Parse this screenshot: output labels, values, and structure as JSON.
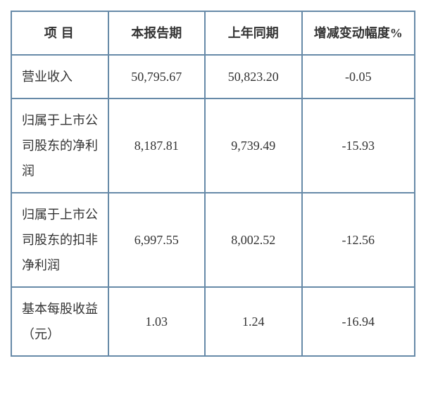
{
  "table": {
    "columns": [
      "项目",
      "本报告期",
      "上年同期",
      "增减变动幅度%"
    ],
    "rows": [
      {
        "label": "营业收入",
        "current": "50,795.67",
        "prev": "50,823.20",
        "change": "-0.05"
      },
      {
        "label": "归属于上市公司股东的净利润",
        "current": "8,187.81",
        "prev": "9,739.49",
        "change": "-15.93"
      },
      {
        "label": "归属于上市公司股东的扣非净利润",
        "current": "6,997.55",
        "prev": "8,002.52",
        "change": "-12.56"
      },
      {
        "label": "基本每股收益（元）",
        "current": "1.03",
        "prev": "1.24",
        "change": "-16.94"
      }
    ],
    "border_color": "#678aa8",
    "text_color": "#333333",
    "background_color": "#ffffff",
    "font_size": 18,
    "header_font_weight": "bold"
  }
}
